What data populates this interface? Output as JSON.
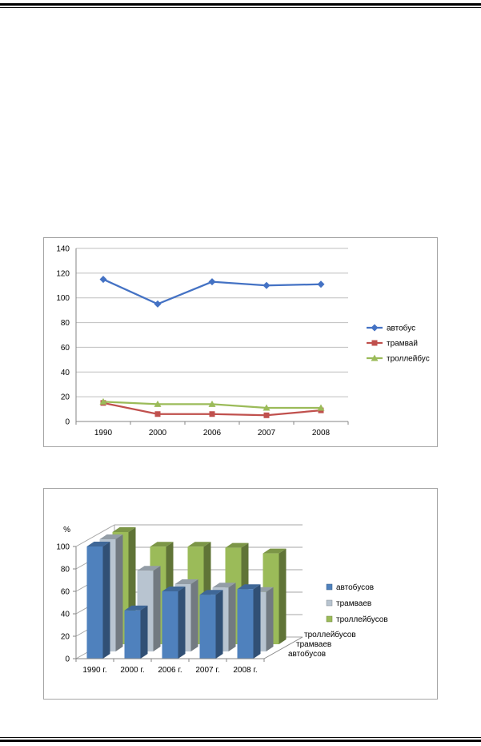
{
  "chart_data": [
    {
      "type": "line",
      "categories": [
        "1990",
        "2000",
        "2006",
        "2007",
        "2008"
      ],
      "ylim": [
        0,
        140
      ],
      "yticks": [
        0,
        20,
        40,
        60,
        80,
        100,
        120,
        140
      ],
      "grid": true,
      "legend_position": "right",
      "series": [
        {
          "name": "автобус",
          "values": [
            115,
            95,
            113,
            110,
            111
          ],
          "color": "#4472c4",
          "marker": "diamond"
        },
        {
          "name": "трамвай",
          "values": [
            15,
            6,
            6,
            5,
            9
          ],
          "color": "#c0504d",
          "marker": "square"
        },
        {
          "name": "троллейбус",
          "values": [
            16,
            14,
            14,
            11,
            11
          ],
          "color": "#9bbb59",
          "marker": "triangle"
        }
      ]
    },
    {
      "type": "bar",
      "subtype": "3d-column",
      "ylabel": "%",
      "categories": [
        "1990 г.",
        "2000 г.",
        "2006 г.",
        "2007 г.",
        "2008 г."
      ],
      "depth_labels": [
        "троллейбусов",
        "трамваев",
        "автобусов"
      ],
      "ylim": [
        0,
        100
      ],
      "yticks": [
        0,
        20,
        40,
        60,
        80,
        100
      ],
      "grid": true,
      "legend_position": "right",
      "series": [
        {
          "name": "автобусов",
          "values": [
            100,
            43,
            60,
            57,
            62
          ],
          "color": "#4f81bd"
        },
        {
          "name": "трамваев",
          "values": [
            100,
            72,
            60,
            57,
            53
          ],
          "color": "#b8c4d0"
        },
        {
          "name": "троллейбусов",
          "values": [
            100,
            87,
            87,
            86,
            81
          ],
          "color": "#9bbb59"
        }
      ]
    }
  ]
}
